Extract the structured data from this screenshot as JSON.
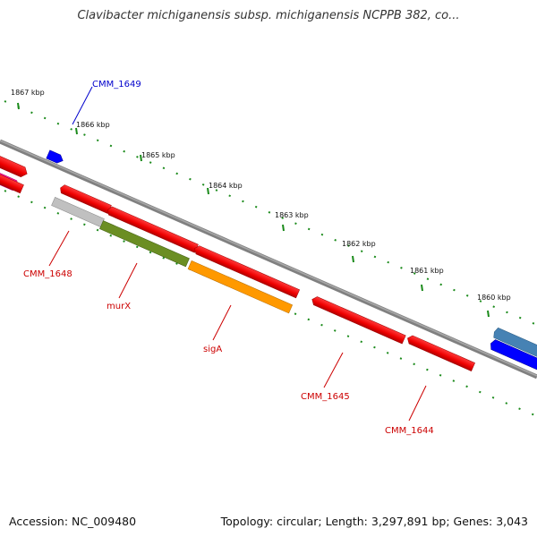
{
  "title": "Clavibacter michiganensis subsp. michiganensis NCPPB 382, co...",
  "footer": {
    "accession": "Accession: NC_009480",
    "summary": "Topology: circular; Length: 3,297,891 bp; Genes: 3,043"
  },
  "kbp_ticks": [
    "1867 kbp",
    "1866 kbp",
    "1865 kbp",
    "1864 kbp",
    "1863 kbp",
    "1862 kbp",
    "1861 kbp",
    "1860 kbp"
  ],
  "gene_labels": {
    "cmm1649": "CMM_1649",
    "cmm1648": "CMM_1648",
    "murx": "murX",
    "siga": "sigA",
    "cmm1645": "CMM_1645",
    "cmm1644": "CMM_1644"
  },
  "colors": {
    "backbone": "#808080",
    "tick": "#1a8a1a",
    "cds_red": "#ff0000",
    "cds_blue": "#0000ff",
    "cds_gray": "#c0c0c0",
    "cds_olive": "#6b8e23",
    "cds_orange": "#ff9900",
    "cds_pink": "#ff1493",
    "cds_steelblue": "#4682b4",
    "label_red": "#cc0000",
    "label_blue": "#0000cc"
  }
}
